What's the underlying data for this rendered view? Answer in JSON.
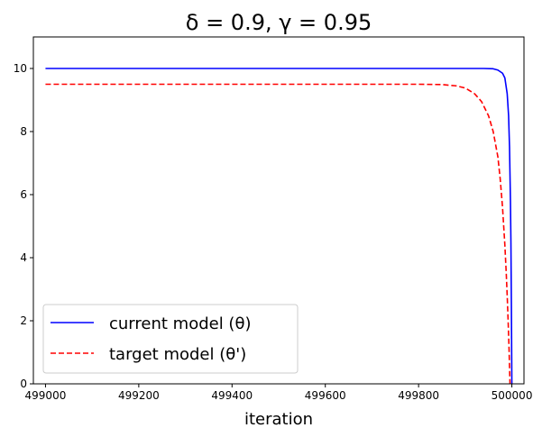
{
  "chart_data": {
    "type": "line",
    "title": "δ = 0.9, γ = 0.95",
    "xlabel": "iteration",
    "ylabel": "",
    "xlim": [
      498974,
      500026
    ],
    "ylim": [
      0,
      11
    ],
    "xticks": [
      499000,
      499200,
      499400,
      499600,
      499800,
      500000
    ],
    "yticks": [
      0,
      2,
      4,
      6,
      8,
      10
    ],
    "grid": false,
    "legend_position": "lower-left",
    "series": [
      {
        "name": "current model (θ)",
        "color": "#0000ff",
        "style": "solid",
        "x": [
          499000,
          499200,
          499400,
          499600,
          499800,
          499900,
          499940,
          499960,
          499970,
          499980,
          499985,
          499990,
          499993,
          499995,
          499997,
          499998,
          499999,
          500000
        ],
        "y": [
          10.0,
          10.0,
          10.0,
          10.0,
          10.0,
          10.0,
          10.0,
          9.99,
          9.95,
          9.85,
          9.7,
          9.2,
          8.5,
          7.5,
          5.8,
          4.5,
          2.5,
          0.0
        ]
      },
      {
        "name": "target model (θ')",
        "color": "#ff0000",
        "style": "dashed",
        "x": [
          499000,
          499200,
          499400,
          499600,
          499800,
          499850,
          499880,
          499900,
          499920,
          499935,
          499950,
          499960,
          499970,
          499975,
          499980,
          499985,
          499988,
          499990,
          499992,
          499994,
          499996
        ],
        "y": [
          9.5,
          9.5,
          9.5,
          9.5,
          9.5,
          9.49,
          9.45,
          9.38,
          9.2,
          8.95,
          8.5,
          8.0,
          7.2,
          6.5,
          5.6,
          4.4,
          3.5,
          2.8,
          2.0,
          1.1,
          0.0
        ]
      }
    ]
  }
}
